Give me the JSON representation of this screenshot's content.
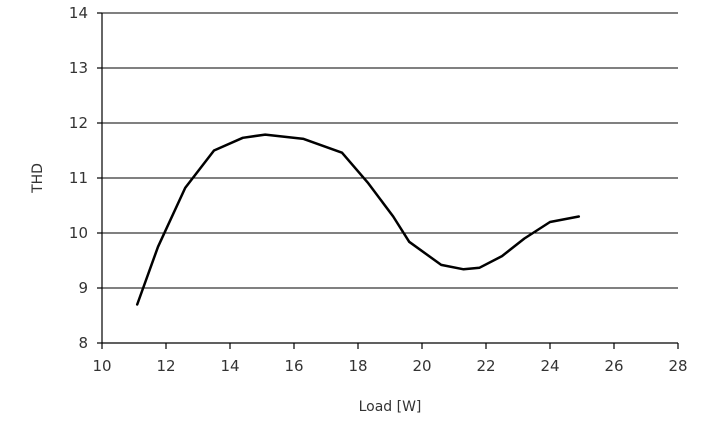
{
  "chart_data": {
    "type": "line",
    "title": "",
    "xlabel": "Load [W]",
    "ylabel": "THD",
    "xlim": [
      10,
      28
    ],
    "ylim": [
      8,
      14
    ],
    "x_ticks": [
      10,
      12,
      14,
      16,
      18,
      20,
      22,
      24,
      26,
      28
    ],
    "y_ticks": [
      8,
      9,
      10,
      11,
      12,
      13,
      14
    ],
    "grid": {
      "horizontal": true,
      "vertical": false
    },
    "legend": "none",
    "series": [
      {
        "color": "#000000",
        "x": [
          11.1,
          11.75,
          12.6,
          13.5,
          14.4,
          15.1,
          16.3,
          17.5,
          18.3,
          19.1,
          19.6,
          20.6,
          21.3,
          21.8,
          22.5,
          23.2,
          24.0,
          24.9
        ],
        "y": [
          8.7,
          9.75,
          10.82,
          11.5,
          11.73,
          11.79,
          11.71,
          11.46,
          10.92,
          10.3,
          9.84,
          9.42,
          9.34,
          9.37,
          9.58,
          9.9,
          10.2,
          10.3
        ]
      }
    ]
  }
}
